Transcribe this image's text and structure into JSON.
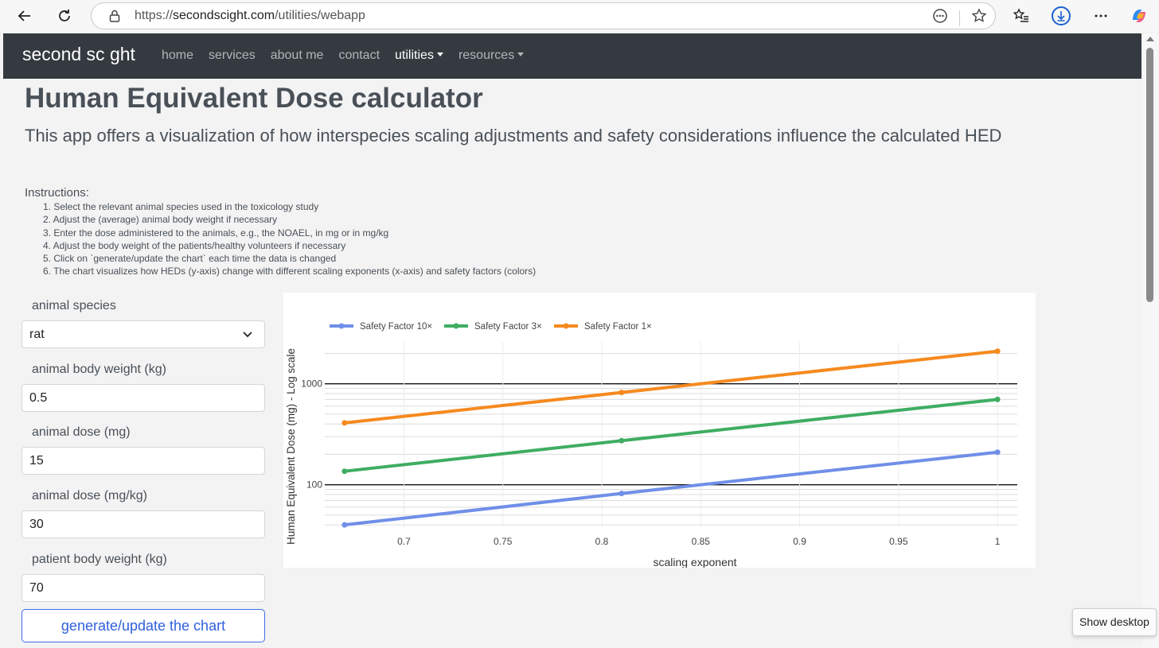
{
  "browser": {
    "url_prefix": "https://",
    "url_host": "secondscight.com",
    "url_path": "/utilities/webapp"
  },
  "site": {
    "brand": "second sc ght",
    "nav": [
      "home",
      "services",
      "about me",
      "contact",
      "utilities",
      "resources"
    ]
  },
  "page": {
    "title": "Human Equivalent Dose calculator",
    "lead": "This app offers a visualization of how interspecies scaling adjustments and safety considerations influence the calculated HED",
    "instructions_heading": "Instructions:",
    "instructions": [
      "1. Select the relevant animal species used in the toxicology study",
      "2. Adjust the (average) animal body weight if necessary",
      "3. Enter the dose administered to the animals, e.g., the NOAEL, in mg or in mg/kg",
      "4. Adjust the body weight of the patients/healthy volunteers if necessary",
      "5. Click on `generate/update the chart` each time the data is changed",
      "6. The chart visualizes how HEDs (y-axis) change with different scaling exponents (x-axis) and safety factors (colors)"
    ]
  },
  "form": {
    "species_label": "animal species",
    "species_value": "rat",
    "animal_weight_label": "animal body weight (kg)",
    "animal_weight_value": "0.5",
    "dose_mg_label": "animal dose (mg)",
    "dose_mg_value": "15",
    "dose_mgkg_label": "animal dose (mg/kg)",
    "dose_mgkg_value": "30",
    "patient_weight_label": "patient body weight (kg)",
    "patient_weight_value": "70",
    "generate_label": "generate/update the chart"
  },
  "tooltip": {
    "text": "Show desktop"
  },
  "chart_data": {
    "type": "line",
    "xlabel": "scaling exponent",
    "ylabel": "Human Equivalent Dose (mg) - Log scale",
    "log_y": true,
    "xlim": [
      0.66,
      1.01
    ],
    "ylim": [
      38,
      2600
    ],
    "x_ticks": [
      "0.7",
      "0.75",
      "0.8",
      "0.85",
      "0.9",
      "0.95",
      "1"
    ],
    "y_ticks": [
      "100",
      "1000"
    ],
    "legend_position": "top-left",
    "x": [
      0.67,
      0.81,
      1.0
    ],
    "series": [
      {
        "name": "Safety Factor 10×",
        "color": "#6f8fe8",
        "values": [
          40,
          82,
          210
        ]
      },
      {
        "name": "Safety Factor 3×",
        "color": "#3fad62",
        "values": [
          136,
          273,
          700
        ]
      },
      {
        "name": "Safety Factor 1×",
        "color": "#f58a1f",
        "values": [
          410,
          820,
          2100
        ]
      }
    ]
  }
}
